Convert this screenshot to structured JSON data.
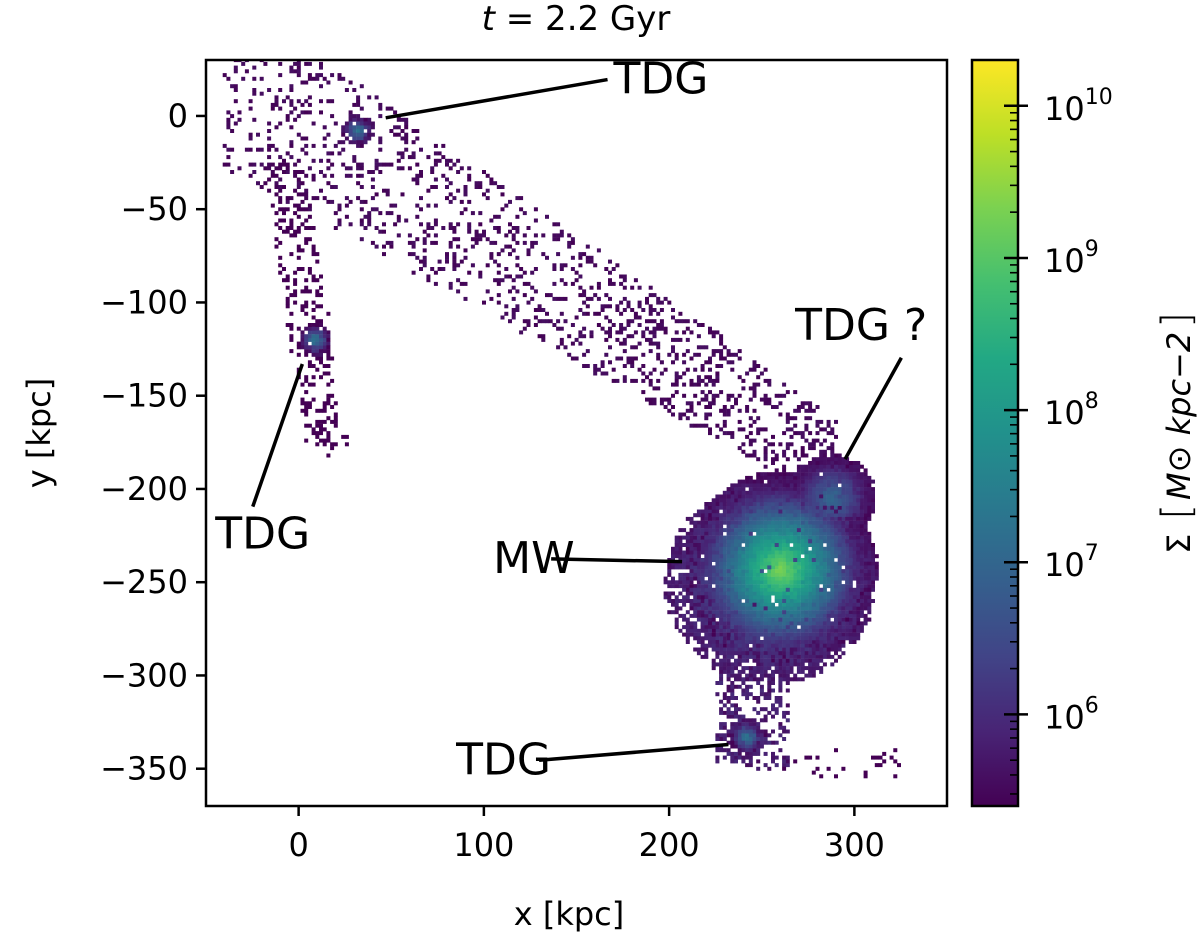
{
  "chart_data": {
    "type": "heatmap",
    "title": {
      "t": "t",
      "eq": " = 2.2 Gyr"
    },
    "xlabel": "x [kpc]",
    "ylabel": "y [kpc]",
    "xlim": [
      -50,
      350
    ],
    "ylim": [
      -370,
      30
    ],
    "xticks": [
      0,
      100,
      200,
      300
    ],
    "yticks": [
      0,
      -50,
      -100,
      -150,
      -200,
      -250,
      -300,
      -350
    ],
    "xtick_labels": [
      "0",
      "100",
      "200",
      "300"
    ],
    "ytick_labels": [
      "0",
      "−50",
      "−100",
      "−150",
      "−200",
      "−250",
      "−300",
      "−350"
    ],
    "colormap": "viridis",
    "colorbar": {
      "label_sigma": "Σ",
      "label_units": "M⊙ kpc−2",
      "scale": "log",
      "range": [
        250000,
        20000000000
      ],
      "tick_values": [
        1000000,
        10000000,
        100000000,
        1000000000,
        10000000000
      ],
      "tick_labels": [
        {
          "base": "10",
          "exp": "6"
        },
        {
          "base": "10",
          "exp": "7"
        },
        {
          "base": "10",
          "exp": "8"
        },
        {
          "base": "10",
          "exp": "9"
        },
        {
          "base": "10",
          "exp": "10"
        }
      ]
    },
    "features": [
      {
        "name": "TDG",
        "x": 32,
        "y": -8,
        "peak_log_sigma": 7.3,
        "radius_kpc": 7
      },
      {
        "name": "TDG",
        "x": 9,
        "y": -120,
        "peak_log_sigma": 7.4,
        "radius_kpc": 7
      },
      {
        "name": "MW",
        "x": 260,
        "y": -243,
        "peak_log_sigma": 9.3,
        "radius_kpc": 45
      },
      {
        "name": "TDG ?",
        "x": 288,
        "y": -205,
        "peak_log_sigma": 7.0,
        "radius_kpc": 20
      },
      {
        "name": "TDG",
        "x": 242,
        "y": -333,
        "peak_log_sigma": 7.3,
        "radius_kpc": 8
      }
    ],
    "annotations": [
      {
        "text": "TDG",
        "label_x": 170,
        "label_y": 12,
        "target_x": 47,
        "target_y": -1
      },
      {
        "text": "TDG",
        "label_x": -45,
        "label_y": -232,
        "target_x": 2,
        "target_y": -133
      },
      {
        "text": "MW",
        "label_x": 105,
        "label_y": -245,
        "target_x": 207,
        "target_y": -239
      },
      {
        "text": "TDG ?",
        "label_x": 268,
        "label_y": -120,
        "target_x": 295,
        "target_y": -184
      },
      {
        "text": "TDG",
        "label_x": 85,
        "label_y": -353,
        "target_x": 232,
        "target_y": -337
      }
    ]
  }
}
